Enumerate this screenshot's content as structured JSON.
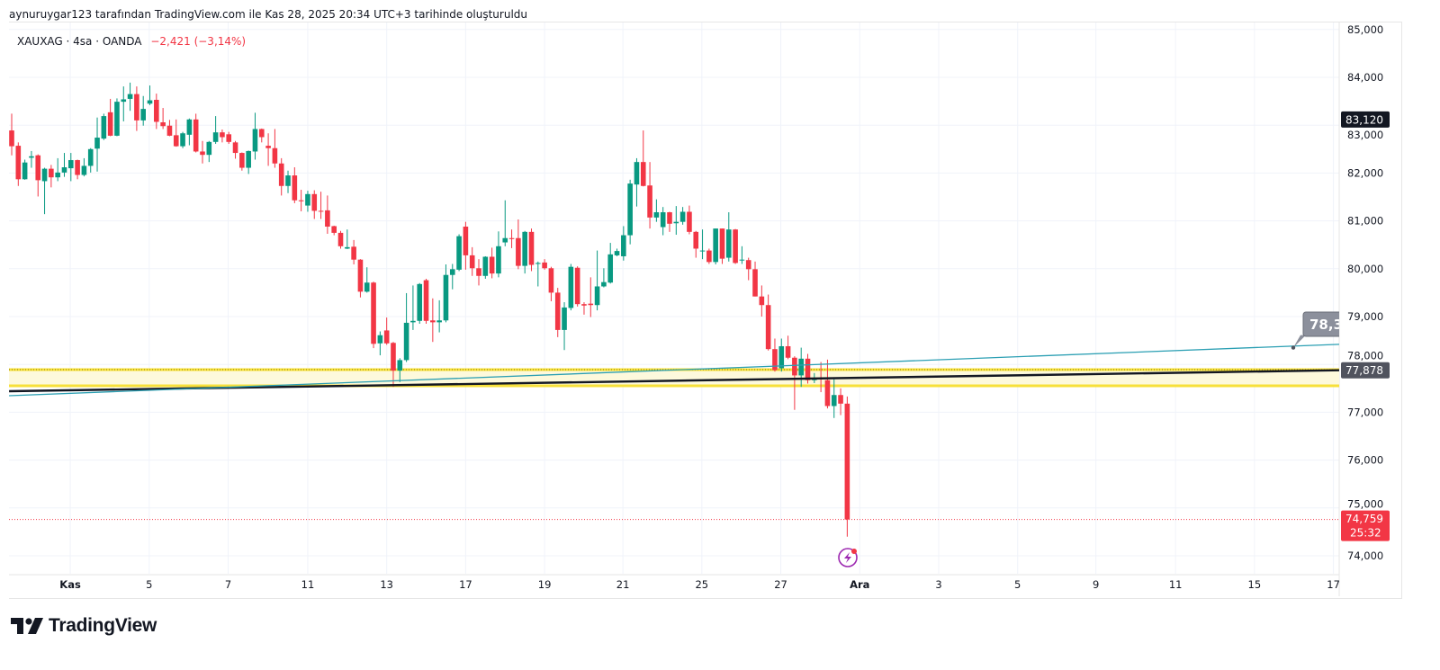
{
  "header": {
    "created_note": "aynuruygar123 tarafından TradingView.com ile Kas 28, 2025 20:34 UTC+3 tarihinde oluşturuldu"
  },
  "legend": {
    "symbol": "XAUXAG · 4sa · OANDA",
    "change": "−2,421 (−3,14%)"
  },
  "logo": {
    "text": "TradingView"
  },
  "colors": {
    "up": "#089981",
    "down": "#f23645",
    "grid": "#f0f3fa",
    "yellow": "#f7e03a",
    "teal": "#2b9fb3",
    "trend_black": "#131722"
  },
  "chart_data": {
    "type": "candlestick",
    "ylim": [
      73600,
      85100
    ],
    "y_ticks": [
      {
        "value": 85000,
        "label": "85,000"
      },
      {
        "value": 84000,
        "label": "84,000"
      },
      {
        "value": 83000,
        "label": "83,000"
      },
      {
        "value": 82000,
        "label": "82,000"
      },
      {
        "value": 81000,
        "label": "81,000"
      },
      {
        "value": 80000,
        "label": "80,000"
      },
      {
        "value": 79000,
        "label": "79,000"
      },
      {
        "value": 78000,
        "label": "78,000"
      },
      {
        "value": 77000,
        "label": "77,000"
      },
      {
        "value": 76000,
        "label": "76,000"
      },
      {
        "value": 75000,
        "label": "75,000"
      },
      {
        "value": 74000,
        "label": "74,000"
      }
    ],
    "x_ticks": [
      {
        "bar": 8.9,
        "label": "Kas",
        "bold": true
      },
      {
        "bar": 20.9,
        "label": "5"
      },
      {
        "bar": 32.9,
        "label": "7"
      },
      {
        "bar": 45,
        "label": "11"
      },
      {
        "bar": 57,
        "label": "13"
      },
      {
        "bar": 69,
        "label": "17"
      },
      {
        "bar": 81,
        "label": "19"
      },
      {
        "bar": 92.9,
        "label": "21"
      },
      {
        "bar": 104.9,
        "label": "25"
      },
      {
        "bar": 116.9,
        "label": "27"
      },
      {
        "bar": 128.9,
        "label": "Ara",
        "bold": true
      },
      {
        "bar": 140.9,
        "label": "3"
      },
      {
        "bar": 152.9,
        "label": "5"
      },
      {
        "bar": 164.8,
        "label": "9"
      },
      {
        "bar": 176.9,
        "label": "11"
      },
      {
        "bar": 188.9,
        "label": "15"
      },
      {
        "bar": 200.9,
        "label": "17"
      }
    ],
    "candles_ohlc": [
      [
        82890,
        83240,
        82370,
        82560
      ],
      [
        82570,
        82640,
        81730,
        81870
      ],
      [
        81870,
        82280,
        81860,
        82220
      ],
      [
        82320,
        82460,
        82110,
        82350
      ],
      [
        82370,
        82390,
        81510,
        81850
      ],
      [
        81830,
        82110,
        81140,
        82090
      ],
      [
        82090,
        82170,
        81700,
        81910
      ],
      [
        81910,
        82310,
        81830,
        82010
      ],
      [
        82010,
        82420,
        81920,
        82120
      ],
      [
        82100,
        82420,
        81830,
        82270
      ],
      [
        82270,
        82280,
        81870,
        81960
      ],
      [
        81960,
        82310,
        81930,
        82150
      ],
      [
        82150,
        82520,
        82010,
        82500
      ],
      [
        82510,
        83160,
        82030,
        82740
      ],
      [
        82720,
        83240,
        82690,
        83190
      ],
      [
        83270,
        83550,
        82770,
        82780
      ],
      [
        82780,
        83560,
        82770,
        83490
      ],
      [
        83490,
        83810,
        83080,
        83540
      ],
      [
        83550,
        83890,
        83300,
        83650
      ],
      [
        83650,
        83810,
        82880,
        83100
      ],
      [
        83100,
        83610,
        82990,
        83340
      ],
      [
        83450,
        83830,
        83420,
        83520
      ],
      [
        83530,
        83660,
        82920,
        83070
      ],
      [
        83060,
        83360,
        82920,
        82980
      ],
      [
        82990,
        83110,
        82770,
        82780
      ],
      [
        82790,
        83120,
        82550,
        82560
      ],
      [
        82560,
        82860,
        82520,
        82830
      ],
      [
        82800,
        83140,
        82580,
        83120
      ],
      [
        83120,
        83240,
        82430,
        82450
      ],
      [
        82450,
        82670,
        82200,
        82380
      ],
      [
        82380,
        82670,
        82230,
        82650
      ],
      [
        82650,
        83190,
        82610,
        82850
      ],
      [
        82850,
        82910,
        82640,
        82750
      ],
      [
        82810,
        82860,
        82610,
        82650
      ],
      [
        82640,
        82670,
        82300,
        82420
      ],
      [
        82420,
        82430,
        82050,
        82110
      ],
      [
        82110,
        82470,
        81980,
        82460
      ],
      [
        82450,
        83260,
        82280,
        82920
      ],
      [
        82920,
        82930,
        82640,
        82750
      ],
      [
        82570,
        82830,
        82150,
        82520
      ],
      [
        82520,
        82920,
        82110,
        82200
      ],
      [
        82200,
        82310,
        81530,
        81730
      ],
      [
        81730,
        82050,
        81580,
        81950
      ],
      [
        81950,
        82120,
        81370,
        81430
      ],
      [
        81430,
        81650,
        81200,
        81410
      ],
      [
        81320,
        81630,
        81190,
        81560
      ],
      [
        81560,
        81640,
        81040,
        81210
      ],
      [
        81210,
        81610,
        81040,
        81200
      ],
      [
        81220,
        81530,
        80730,
        80880
      ],
      [
        80890,
        80900,
        80700,
        80750
      ],
      [
        80750,
        80790,
        80420,
        80470
      ],
      [
        80420,
        80820,
        80410,
        80450
      ],
      [
        80460,
        80600,
        80090,
        80190
      ],
      [
        80190,
        80200,
        79400,
        79520
      ],
      [
        79520,
        80030,
        79500,
        79710
      ],
      [
        79710,
        79730,
        78340,
        78430
      ],
      [
        78440,
        78690,
        78190,
        78610
      ],
      [
        78710,
        78980,
        78410,
        78440
      ],
      [
        78450,
        78470,
        77530,
        77870
      ],
      [
        77870,
        78130,
        77630,
        78090
      ],
      [
        78090,
        79490,
        78050,
        78870
      ],
      [
        78880,
        79650,
        78720,
        78910
      ],
      [
        78910,
        79700,
        78850,
        79680
      ],
      [
        79760,
        79790,
        78850,
        78910
      ],
      [
        78920,
        79380,
        78470,
        78880
      ],
      [
        78880,
        79340,
        78670,
        78920
      ],
      [
        78920,
        80090,
        78880,
        79870
      ],
      [
        79870,
        80100,
        79570,
        79990
      ],
      [
        79980,
        80720,
        79950,
        80680
      ],
      [
        80880,
        80980,
        79980,
        80280
      ],
      [
        80280,
        80450,
        79850,
        80010
      ],
      [
        80010,
        80200,
        79650,
        79850
      ],
      [
        79850,
        80260,
        79790,
        80250
      ],
      [
        80250,
        80440,
        79800,
        79900
      ],
      [
        79900,
        80780,
        79820,
        80470
      ],
      [
        80550,
        81430,
        80470,
        80640
      ],
      [
        80640,
        80820,
        80430,
        80620
      ],
      [
        80640,
        81030,
        79990,
        80060
      ],
      [
        80060,
        80790,
        79900,
        80770
      ],
      [
        80770,
        80840,
        79950,
        80080
      ],
      [
        80100,
        80150,
        79630,
        80120
      ],
      [
        80130,
        80200,
        79980,
        80010
      ],
      [
        80010,
        80040,
        79320,
        79500
      ],
      [
        79500,
        79600,
        78570,
        78720
      ],
      [
        78720,
        79300,
        78300,
        79190
      ],
      [
        79180,
        80100,
        79130,
        80040
      ],
      [
        80020,
        80050,
        79210,
        79260
      ],
      [
        79260,
        79300,
        79040,
        79230
      ],
      [
        79270,
        79820,
        78990,
        79240
      ],
      [
        79240,
        80380,
        79130,
        79630
      ],
      [
        79630,
        80010,
        79610,
        79720
      ],
      [
        79710,
        80540,
        79690,
        80300
      ],
      [
        80280,
        80420,
        80260,
        80370
      ],
      [
        80260,
        80890,
        80170,
        80700
      ],
      [
        80700,
        81860,
        80510,
        81780
      ],
      [
        81760,
        82310,
        81300,
        82230
      ],
      [
        82230,
        82890,
        81720,
        81730
      ],
      [
        81740,
        82230,
        80840,
        81070
      ],
      [
        81070,
        81450,
        80980,
        81180
      ],
      [
        80870,
        81290,
        80700,
        81180
      ],
      [
        81180,
        81190,
        80770,
        80940
      ],
      [
        80950,
        81310,
        80710,
        80980
      ],
      [
        80980,
        81290,
        80920,
        81190
      ],
      [
        81190,
        81320,
        80720,
        80770
      ],
      [
        80770,
        80790,
        80230,
        80420
      ],
      [
        80370,
        80820,
        80200,
        80380
      ],
      [
        80380,
        80420,
        80100,
        80140
      ],
      [
        80140,
        80840,
        80090,
        80840
      ],
      [
        80840,
        80840,
        80100,
        80210
      ],
      [
        80230,
        81180,
        80150,
        80820
      ],
      [
        80820,
        80830,
        80100,
        80120
      ],
      [
        80190,
        80470,
        80100,
        80190
      ],
      [
        80180,
        80230,
        79760,
        79990
      ],
      [
        79990,
        80150,
        79420,
        79420
      ],
      [
        79420,
        79650,
        79000,
        79240
      ],
      [
        79240,
        79460,
        78290,
        78320
      ],
      [
        78320,
        78540,
        77850,
        77880
      ],
      [
        77920,
        78540,
        77850,
        78380
      ],
      [
        78380,
        78600,
        78110,
        78140
      ],
      [
        78140,
        78170,
        77050,
        77770
      ],
      [
        77770,
        78350,
        77530,
        78120
      ],
      [
        78120,
        78220,
        77600,
        77670
      ],
      [
        77670,
        77820,
        77610,
        77720
      ],
      [
        77710,
        78050,
        77420,
        77690
      ],
      [
        77670,
        78100,
        77080,
        77130
      ],
      [
        77130,
        77690,
        76880,
        77360
      ],
      [
        77360,
        77500,
        76940,
        77180
      ],
      [
        77180,
        77330,
        74400,
        74759
      ]
    ],
    "horizontal_zone": {
      "upper": 77890,
      "lower": 77553
    },
    "trend_lines": [
      {
        "name": "black-trendline",
        "from": {
          "bar": -0.4,
          "price": 77440
        },
        "to": {
          "bar": 202,
          "price": 77878
        }
      },
      {
        "name": "teal-trendline",
        "from": {
          "bar": -0.4,
          "price": 77346
        },
        "to": {
          "bar": 202,
          "price": 78420
        }
      }
    ],
    "callout": {
      "label": "78,3",
      "anchor": {
        "bar": 194.8,
        "price": 78350
      }
    },
    "price_labels": {
      "high_marker": {
        "value": 83120,
        "label": "83,120"
      },
      "trend_value": {
        "value": 77878,
        "label": "77,878"
      },
      "last_price": {
        "value": 74759,
        "label": "74,759",
        "countdown": "25:32"
      }
    }
  }
}
